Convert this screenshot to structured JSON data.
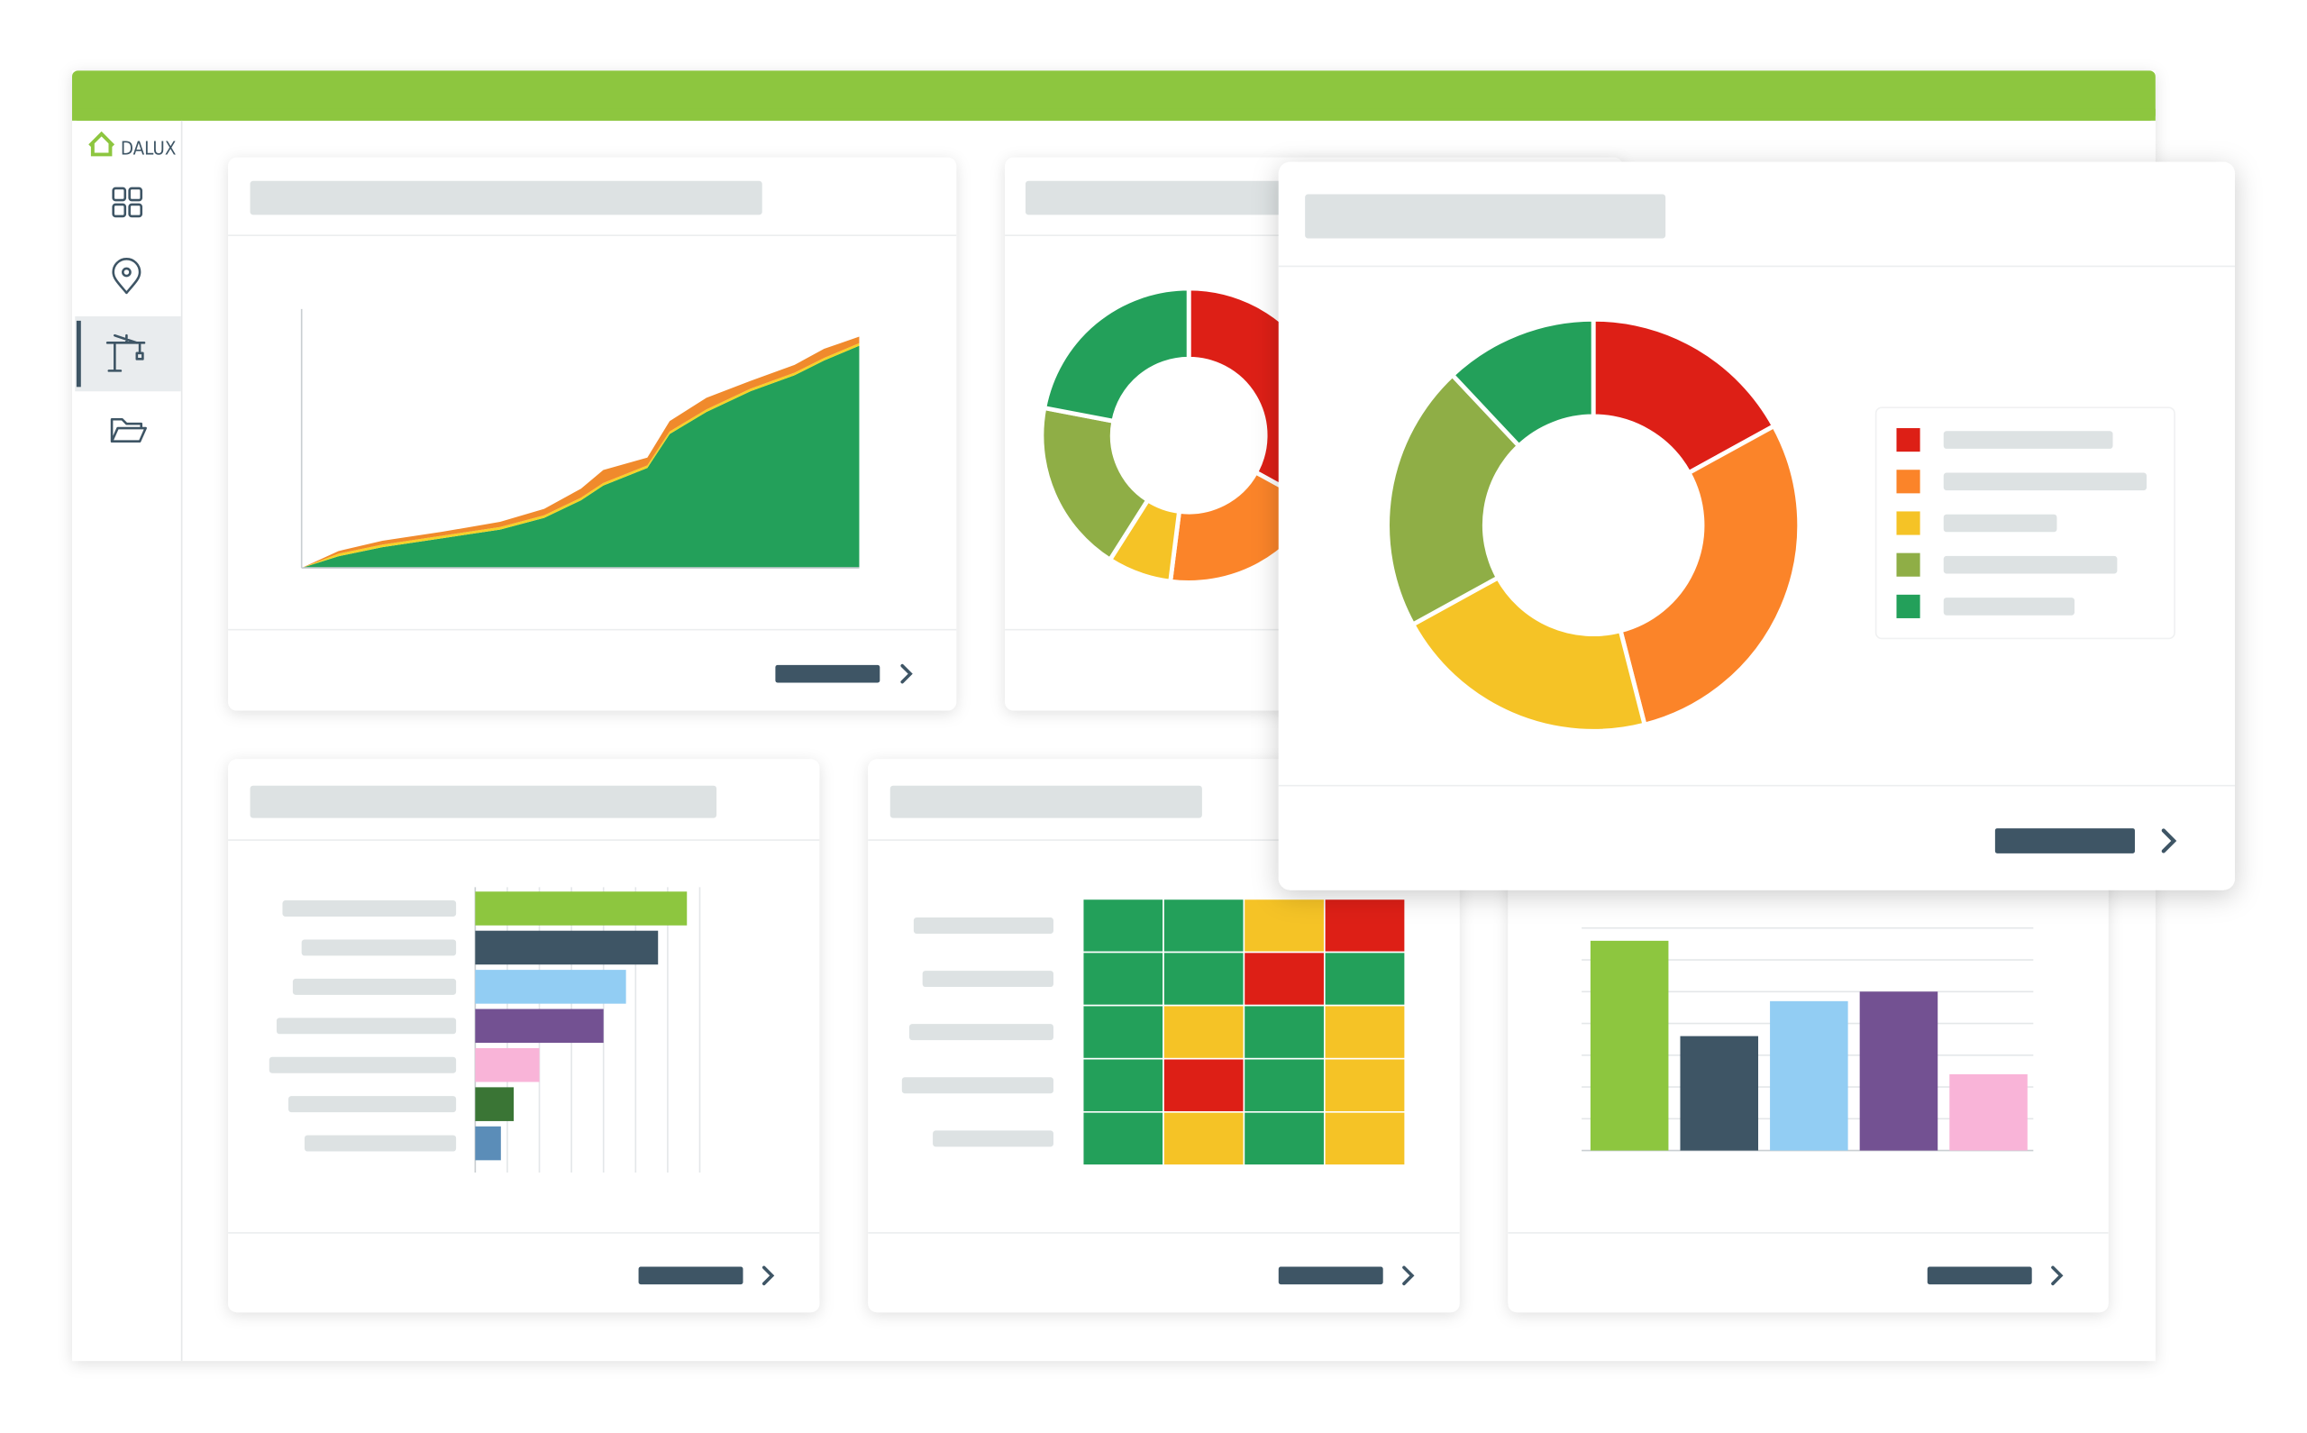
{
  "app": {
    "logo": "DALUX"
  },
  "chart_data": [
    {
      "type": "area",
      "stacked": true,
      "xlim": [
        0,
        100
      ],
      "ylim": [
        0,
        100
      ],
      "x": [
        0,
        6.6,
        14.5,
        25.1,
        35.6,
        43.5,
        50.1,
        54.1,
        62,
        66,
        72.6,
        80.5,
        88.4,
        93.7,
        100
      ],
      "series": [
        {
          "color": "#23a05a",
          "values": [
            0,
            4.5,
            8,
            11.4,
            14.8,
            19.3,
            26.1,
            31.8,
            38.6,
            51.7,
            60.2,
            68.2,
            74.4,
            80.1,
            85.8
          ]
        },
        {
          "color": "#f5d328",
          "values": [
            0,
            1,
            1,
            1,
            1,
            1,
            1,
            1,
            1,
            1,
            1,
            1,
            1,
            1,
            1
          ]
        },
        {
          "color": "#f08a2c",
          "values": [
            0,
            1,
            1.5,
            1.5,
            2,
            2.5,
            3.5,
            5,
            3,
            4,
            4.5,
            3,
            3,
            3.5,
            2.5
          ]
        }
      ]
    },
    {
      "type": "donut",
      "values": [
        33,
        19,
        7,
        19,
        22
      ],
      "colors": [
        "#dd1f16",
        "#fb8429",
        "#f5c326",
        "#8fae46",
        "#23a05a"
      ]
    },
    {
      "type": "hbar",
      "xlim": [
        0,
        7
      ],
      "xticks": [
        0,
        1,
        2,
        3,
        4,
        5,
        6,
        7
      ],
      "grid": true,
      "values": [
        6.6,
        5.7,
        4.7,
        4.0,
        2.0,
        1.2,
        0.8
      ],
      "colors": [
        "#8dc63f",
        "#3e5565",
        "#92cdf3",
        "#735192",
        "#f9b4d8",
        "#3a7535",
        "#5b8db8"
      ]
    },
    {
      "type": "heatmap",
      "colors": [
        "#23a05a",
        "#f5c326",
        "#dd1f16"
      ],
      "values": [
        [
          0,
          0,
          1,
          2
        ],
        [
          0,
          0,
          2,
          0
        ],
        [
          0,
          1,
          0,
          1
        ],
        [
          0,
          2,
          0,
          1
        ],
        [
          0,
          1,
          0,
          1
        ]
      ]
    },
    {
      "type": "bar",
      "ylim": [
        0,
        7
      ],
      "yticks": [
        0,
        1,
        2,
        3,
        4,
        5,
        6,
        7
      ],
      "grid": true,
      "values": [
        6.6,
        3.6,
        4.7,
        5.0,
        2.4
      ],
      "colors": [
        "#8dc63f",
        "#3e5565",
        "#92cdf3",
        "#735192",
        "#f9b4d8"
      ]
    },
    {
      "type": "donut",
      "legend": "right",
      "values": [
        17,
        29,
        21,
        21,
        12
      ],
      "colors": [
        "#dd1f16",
        "#fb8429",
        "#f5c326",
        "#8fae46",
        "#23a05a"
      ]
    }
  ]
}
